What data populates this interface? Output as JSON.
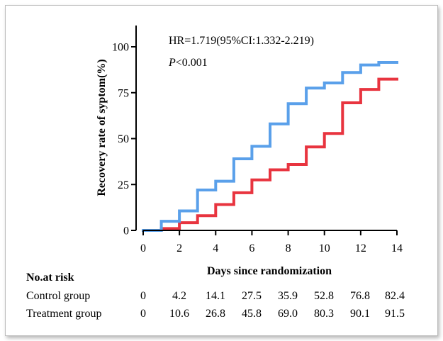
{
  "colors": {
    "treatment": "#5aa0ea",
    "control": "#e8343f",
    "axis": "#000000"
  },
  "chart_data": {
    "type": "line",
    "step": true,
    "xlabel": "Days since randomization",
    "ylabel": "Recovery rate of syptom(%)",
    "xlim": [
      0,
      14
    ],
    "ylim": [
      0,
      100
    ],
    "xticks": [
      "0",
      "2",
      "4",
      "6",
      "8",
      "10",
      "12",
      "14"
    ],
    "yticks": [
      "0",
      "25",
      "50",
      "75",
      "100"
    ],
    "grid": false,
    "annotations": {
      "hr": "HR=1.719(95%CI:1.332-2.219)",
      "p_label": "P",
      "p_value": "<0.001"
    },
    "series": [
      {
        "name": "Control group",
        "color": "#e8343f",
        "x": [
          0,
          1,
          2,
          3,
          4,
          5,
          6,
          7,
          8,
          9,
          10,
          11,
          12,
          13,
          14
        ],
        "y": [
          0,
          1,
          4.2,
          8,
          14.1,
          20.5,
          27.5,
          33,
          35.9,
          45.5,
          52.8,
          69.5,
          76.8,
          82.4,
          82.4
        ]
      },
      {
        "name": "Treatment group",
        "color": "#5aa0ea",
        "x": [
          0,
          1,
          2,
          3,
          4,
          5,
          6,
          7,
          8,
          9,
          10,
          11,
          12,
          13,
          14
        ],
        "y": [
          0,
          5,
          10.6,
          22,
          26.8,
          39,
          45.8,
          58,
          69.0,
          77.5,
          80.3,
          86,
          90.1,
          91.5,
          91.5
        ]
      }
    ]
  },
  "risk_table": {
    "title": "No.at risk",
    "rows": [
      {
        "label": "Control group",
        "values": [
          "0",
          "4.2",
          "14.1",
          "27.5",
          "35.9",
          "52.8",
          "76.8",
          "82.4"
        ]
      },
      {
        "label": "Treatment group",
        "values": [
          "0",
          "10.6",
          "26.8",
          "45.8",
          "69.0",
          "80.3",
          "90.1",
          "91.5"
        ]
      }
    ]
  }
}
